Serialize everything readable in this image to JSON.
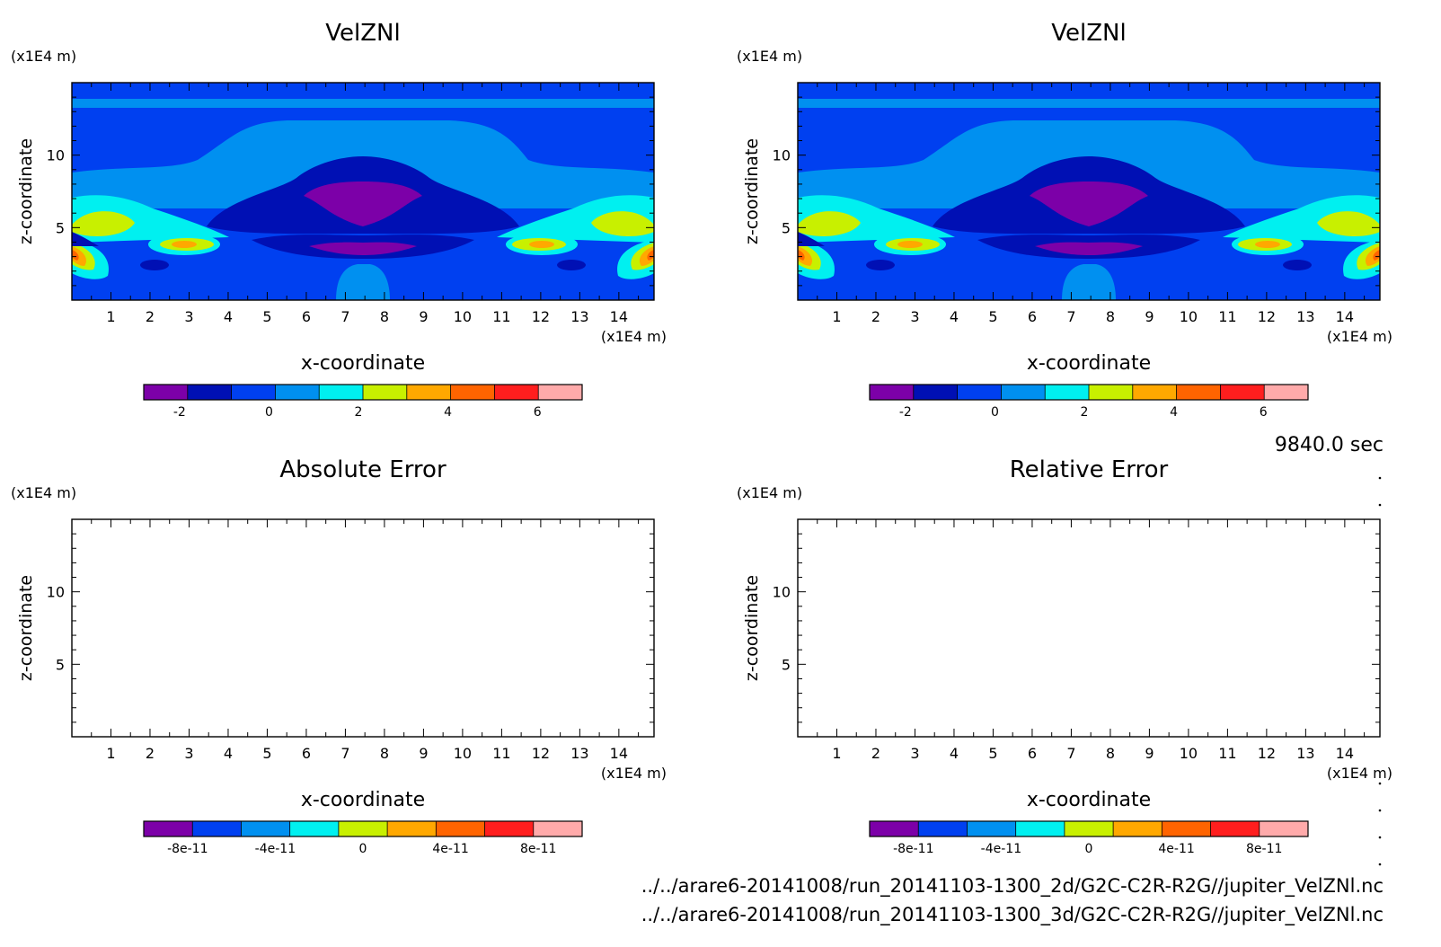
{
  "time_label": "9840.0 sec",
  "file_paths": [
    "../../arare6-20141008/run_20141103-1300_2d/G2C-C2R-R2G//jupiter_VelZNl.nc",
    "../../arare6-20141008/run_20141103-1300_3d/G2C-C2R-R2G//jupiter_VelZNl.nc"
  ],
  "colors": {
    "levels": [
      "#7c00a8",
      "#0010b4",
      "#0040f0",
      "#0090f0",
      "#00f0f0",
      "#c8f000",
      "#ffa800",
      "#ff6400",
      "#ff1e1e",
      "#ffaaaa"
    ],
    "background_field": "#0060f0"
  },
  "chart_data": [
    {
      "type": "heatmap",
      "title": "VelZNl",
      "xlabel": "x-coordinate",
      "ylabel": "z-coordinate",
      "x_unit": "(x1E4 m)",
      "y_unit": "(x1E4 m)",
      "xlim": [
        0,
        14.9
      ],
      "ylim": [
        0,
        15
      ],
      "x_ticks": [
        1,
        2,
        3,
        4,
        5,
        6,
        7,
        8,
        9,
        10,
        11,
        12,
        13,
        14
      ],
      "y_ticks": [
        5,
        10
      ],
      "colorbar": {
        "n_colors": 10,
        "value_range": [
          -2.8,
          7
        ],
        "ticks": [
          -2,
          0,
          2,
          4,
          6
        ],
        "tick_labels": [
          "-2",
          "0",
          "2",
          "4",
          "6"
        ]
      }
    },
    {
      "type": "heatmap",
      "title": "VelZNl",
      "xlabel": "x-coordinate",
      "ylabel": "z-coordinate",
      "x_unit": "(x1E4 m)",
      "y_unit": "(x1E4 m)",
      "xlim": [
        0,
        14.9
      ],
      "ylim": [
        0,
        15
      ],
      "x_ticks": [
        1,
        2,
        3,
        4,
        5,
        6,
        7,
        8,
        9,
        10,
        11,
        12,
        13,
        14
      ],
      "y_ticks": [
        5,
        10
      ],
      "colorbar": {
        "n_colors": 10,
        "value_range": [
          -2.8,
          7
        ],
        "ticks": [
          -2,
          0,
          2,
          4,
          6
        ],
        "tick_labels": [
          "-2",
          "0",
          "2",
          "4",
          "6"
        ]
      }
    },
    {
      "type": "heatmap",
      "title": "Absolute Error",
      "xlabel": "x-coordinate",
      "ylabel": "z-coordinate",
      "x_unit": "(x1E4 m)",
      "y_unit": "(x1E4 m)",
      "xlim": [
        0,
        14.9
      ],
      "ylim": [
        0,
        15
      ],
      "x_ticks": [
        1,
        2,
        3,
        4,
        5,
        6,
        7,
        8,
        9,
        10,
        11,
        12,
        13,
        14
      ],
      "y_ticks": [
        5,
        10
      ],
      "colorbar": {
        "n_colors": 9,
        "value_range": [
          -1e-10,
          1e-10
        ],
        "ticks": [
          -8e-11,
          -4e-11,
          0,
          4e-11,
          8e-11
        ],
        "tick_labels": [
          "-8e-11",
          "-4e-11",
          "0",
          "4e-11",
          "8e-11"
        ]
      }
    },
    {
      "type": "heatmap",
      "title": "Relative Error",
      "xlabel": "x-coordinate",
      "ylabel": "z-coordinate",
      "x_unit": "(x1E4 m)",
      "y_unit": "(x1E4 m)",
      "xlim": [
        0,
        14.9
      ],
      "ylim": [
        0,
        15
      ],
      "x_ticks": [
        1,
        2,
        3,
        4,
        5,
        6,
        7,
        8,
        9,
        10,
        11,
        12,
        13,
        14
      ],
      "y_ticks": [
        5,
        10
      ],
      "colorbar": {
        "n_colors": 9,
        "value_range": [
          -1e-10,
          1e-10
        ],
        "ticks": [
          -8e-11,
          -4e-11,
          0,
          4e-11,
          8e-11
        ],
        "tick_labels": [
          "-8e-11",
          "-4e-11",
          "0",
          "4e-11",
          "8e-11"
        ]
      }
    }
  ]
}
